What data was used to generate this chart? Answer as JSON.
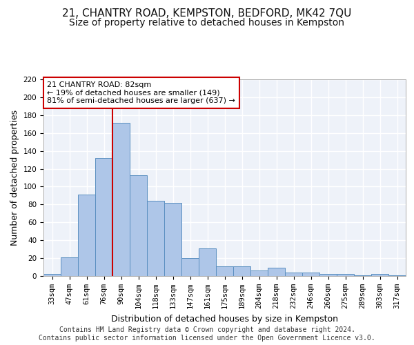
{
  "title_line1": "21, CHANTRY ROAD, KEMPSTON, BEDFORD, MK42 7QU",
  "title_line2": "Size of property relative to detached houses in Kempston",
  "xlabel": "Distribution of detached houses by size in Kempston",
  "ylabel": "Number of detached properties",
  "categories": [
    "33sqm",
    "47sqm",
    "61sqm",
    "76sqm",
    "90sqm",
    "104sqm",
    "118sqm",
    "133sqm",
    "147sqm",
    "161sqm",
    "175sqm",
    "189sqm",
    "204sqm",
    "218sqm",
    "232sqm",
    "246sqm",
    "260sqm",
    "275sqm",
    "289sqm",
    "303sqm",
    "317sqm"
  ],
  "values": [
    2,
    21,
    91,
    132,
    171,
    113,
    84,
    82,
    20,
    31,
    11,
    11,
    6,
    9,
    4,
    4,
    2,
    2,
    1,
    2,
    1
  ],
  "bar_color": "#aec6e8",
  "bar_edge_color": "#5a8fc0",
  "vline_x": 3.5,
  "vline_color": "#cc0000",
  "annotation_text": "21 CHANTRY ROAD: 82sqm\n← 19% of detached houses are smaller (149)\n81% of semi-detached houses are larger (637) →",
  "annotation_box_color": "#ffffff",
  "annotation_box_edge": "#cc0000",
  "ylim": [
    0,
    220
  ],
  "yticks": [
    0,
    20,
    40,
    60,
    80,
    100,
    120,
    140,
    160,
    180,
    200,
    220
  ],
  "footer_line1": "Contains HM Land Registry data © Crown copyright and database right 2024.",
  "footer_line2": "Contains public sector information licensed under the Open Government Licence v3.0.",
  "bg_color": "#eef2f9",
  "grid_color": "#ffffff",
  "title_fontsize": 11,
  "subtitle_fontsize": 10,
  "axis_label_fontsize": 9,
  "tick_fontsize": 7.5,
  "footer_fontsize": 7
}
